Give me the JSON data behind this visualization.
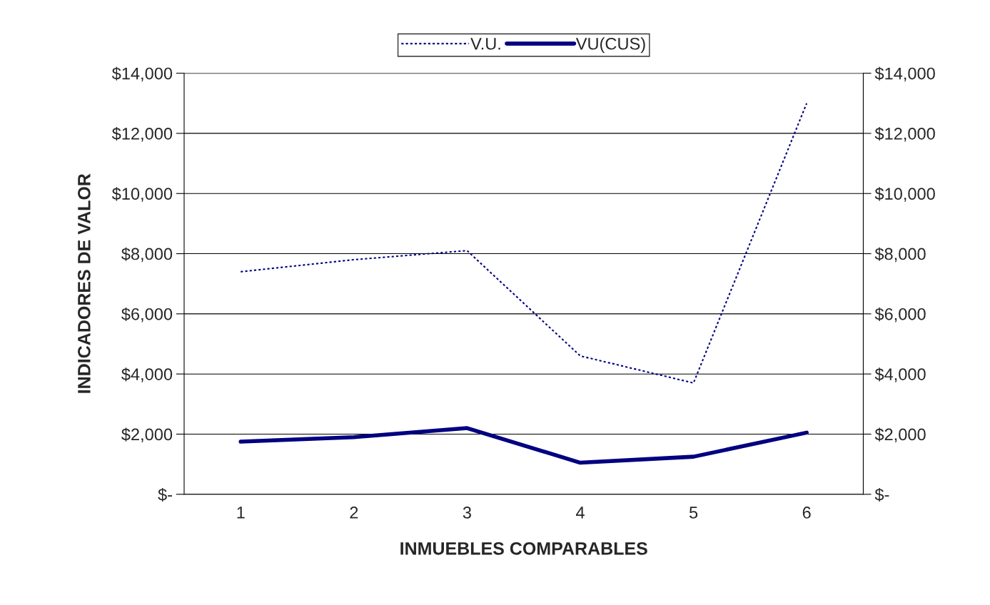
{
  "chart_data": {
    "type": "line",
    "xlabel": "INMUEBLES COMPARABLES",
    "ylabel": "INDICADORES DE VALOR",
    "categories": [
      "1",
      "2",
      "3",
      "4",
      "5",
      "6"
    ],
    "series": [
      {
        "name": "V.U.",
        "color": "#000080",
        "line_style": "dotted",
        "values": [
          7400,
          7800,
          8100,
          4600,
          3700,
          13000
        ]
      },
      {
        "name": "VU(CUS)",
        "color": "#000080",
        "line_style": "solid",
        "values": [
          1750,
          1900,
          2200,
          1050,
          1250,
          2050
        ]
      }
    ],
    "ylim": [
      0,
      14000
    ],
    "yticks": [
      {
        "value": 0,
        "label": "$-"
      },
      {
        "value": 2000,
        "label": "$2,000"
      },
      {
        "value": 4000,
        "label": "$4,000"
      },
      {
        "value": 6000,
        "label": "$6,000"
      },
      {
        "value": 8000,
        "label": "$8,000"
      },
      {
        "value": 10000,
        "label": "$10,000"
      },
      {
        "value": 12000,
        "label": "$12,000"
      },
      {
        "value": 14000,
        "label": "$14,000"
      }
    ],
    "y2lim": [
      0,
      14000
    ],
    "y2ticks": [
      {
        "value": 0,
        "label": "$-"
      },
      {
        "value": 2000,
        "label": "$2,000"
      },
      {
        "value": 4000,
        "label": "$4,000"
      },
      {
        "value": 6000,
        "label": "$6,000"
      },
      {
        "value": 8000,
        "label": "$8,000"
      },
      {
        "value": 10000,
        "label": "$10,000"
      },
      {
        "value": 12000,
        "label": "$12,000"
      },
      {
        "value": 14000,
        "label": "$14,000"
      }
    ],
    "grid": "y",
    "legend": "top",
    "marker": "none"
  }
}
